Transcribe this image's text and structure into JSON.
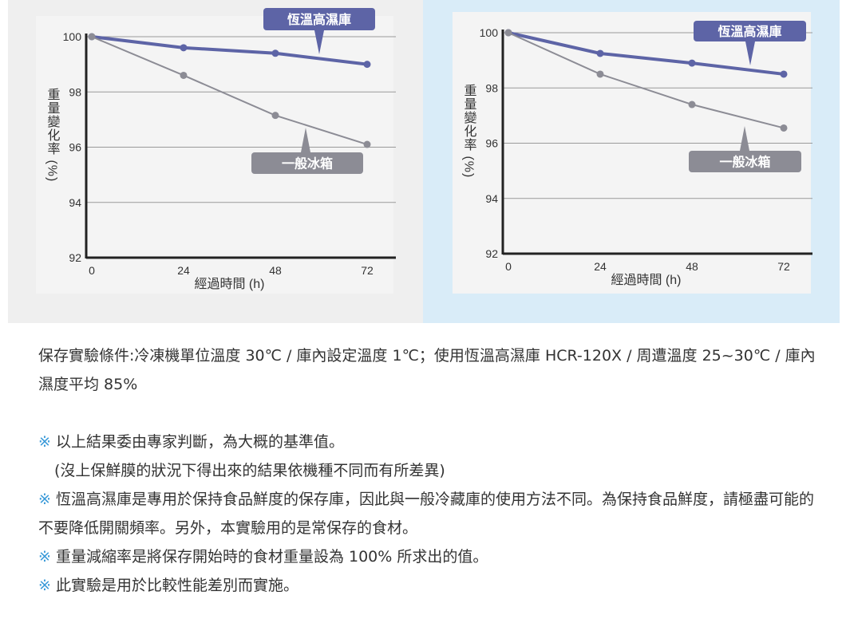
{
  "chart_data": [
    {
      "type": "line",
      "ylabel": "重量變化率 (%)",
      "xlabel": "經過時間 (h)",
      "x": [
        0,
        24,
        48,
        72
      ],
      "xticks": [
        "0",
        "24",
        "48",
        "72"
      ],
      "yticks": [
        "92",
        "94",
        "96",
        "98",
        "100"
      ],
      "ylim": [
        92,
        100
      ],
      "grid": true,
      "series": [
        {
          "name": "恆溫高濕庫",
          "values": [
            100,
            99.6,
            99.4,
            99.0
          ],
          "color": "#5d64a6"
        },
        {
          "name": "一般冰箱",
          "values": [
            100,
            98.6,
            97.15,
            96.1
          ],
          "color": "#8c8c95"
        }
      ]
    },
    {
      "type": "line",
      "ylabel": "重量變化率 (%)",
      "xlabel": "經過時間 (h)",
      "x": [
        0,
        24,
        48,
        72
      ],
      "xticks": [
        "0",
        "24",
        "48",
        "72"
      ],
      "yticks": [
        "92",
        "94",
        "96",
        "98",
        "100"
      ],
      "ylim": [
        92,
        100
      ],
      "grid": true,
      "series": [
        {
          "name": "恆溫高濕庫",
          "values": [
            100,
            99.25,
            98.9,
            98.5
          ],
          "color": "#5d64a6"
        },
        {
          "name": "一般冰箱",
          "values": [
            100,
            98.5,
            97.4,
            96.55
          ],
          "color": "#8c8c95"
        }
      ]
    }
  ],
  "notes": {
    "condition": "保存實驗條件:冷凍機單位溫度 30℃ / 庫內設定溫度 1℃；使用恆溫高濕庫 HCR-120X / 周遭溫度 25~30℃ / 庫內濕度平均 85%",
    "mark": "※",
    "items": [
      {
        "text": "以上結果委由專家判斷，為大概的基準值。",
        "sub": "(沒上保鮮膜的狀況下得出來的結果依機種不同而有所差異)"
      },
      {
        "text": "恆溫高濕庫是專用於保持食品鮮度的保存庫，因此與一般冷藏庫的使用方法不同。為保持食品鮮度，請極盡可能的不要降低開關頻率。另外，本實驗用的是常保存的食材。"
      },
      {
        "text": "重量減縮率是將保存開始時的食材重量設為 100% 所求出的值。"
      },
      {
        "text": "此實驗是用於比較性能差別而實施。"
      }
    ]
  }
}
